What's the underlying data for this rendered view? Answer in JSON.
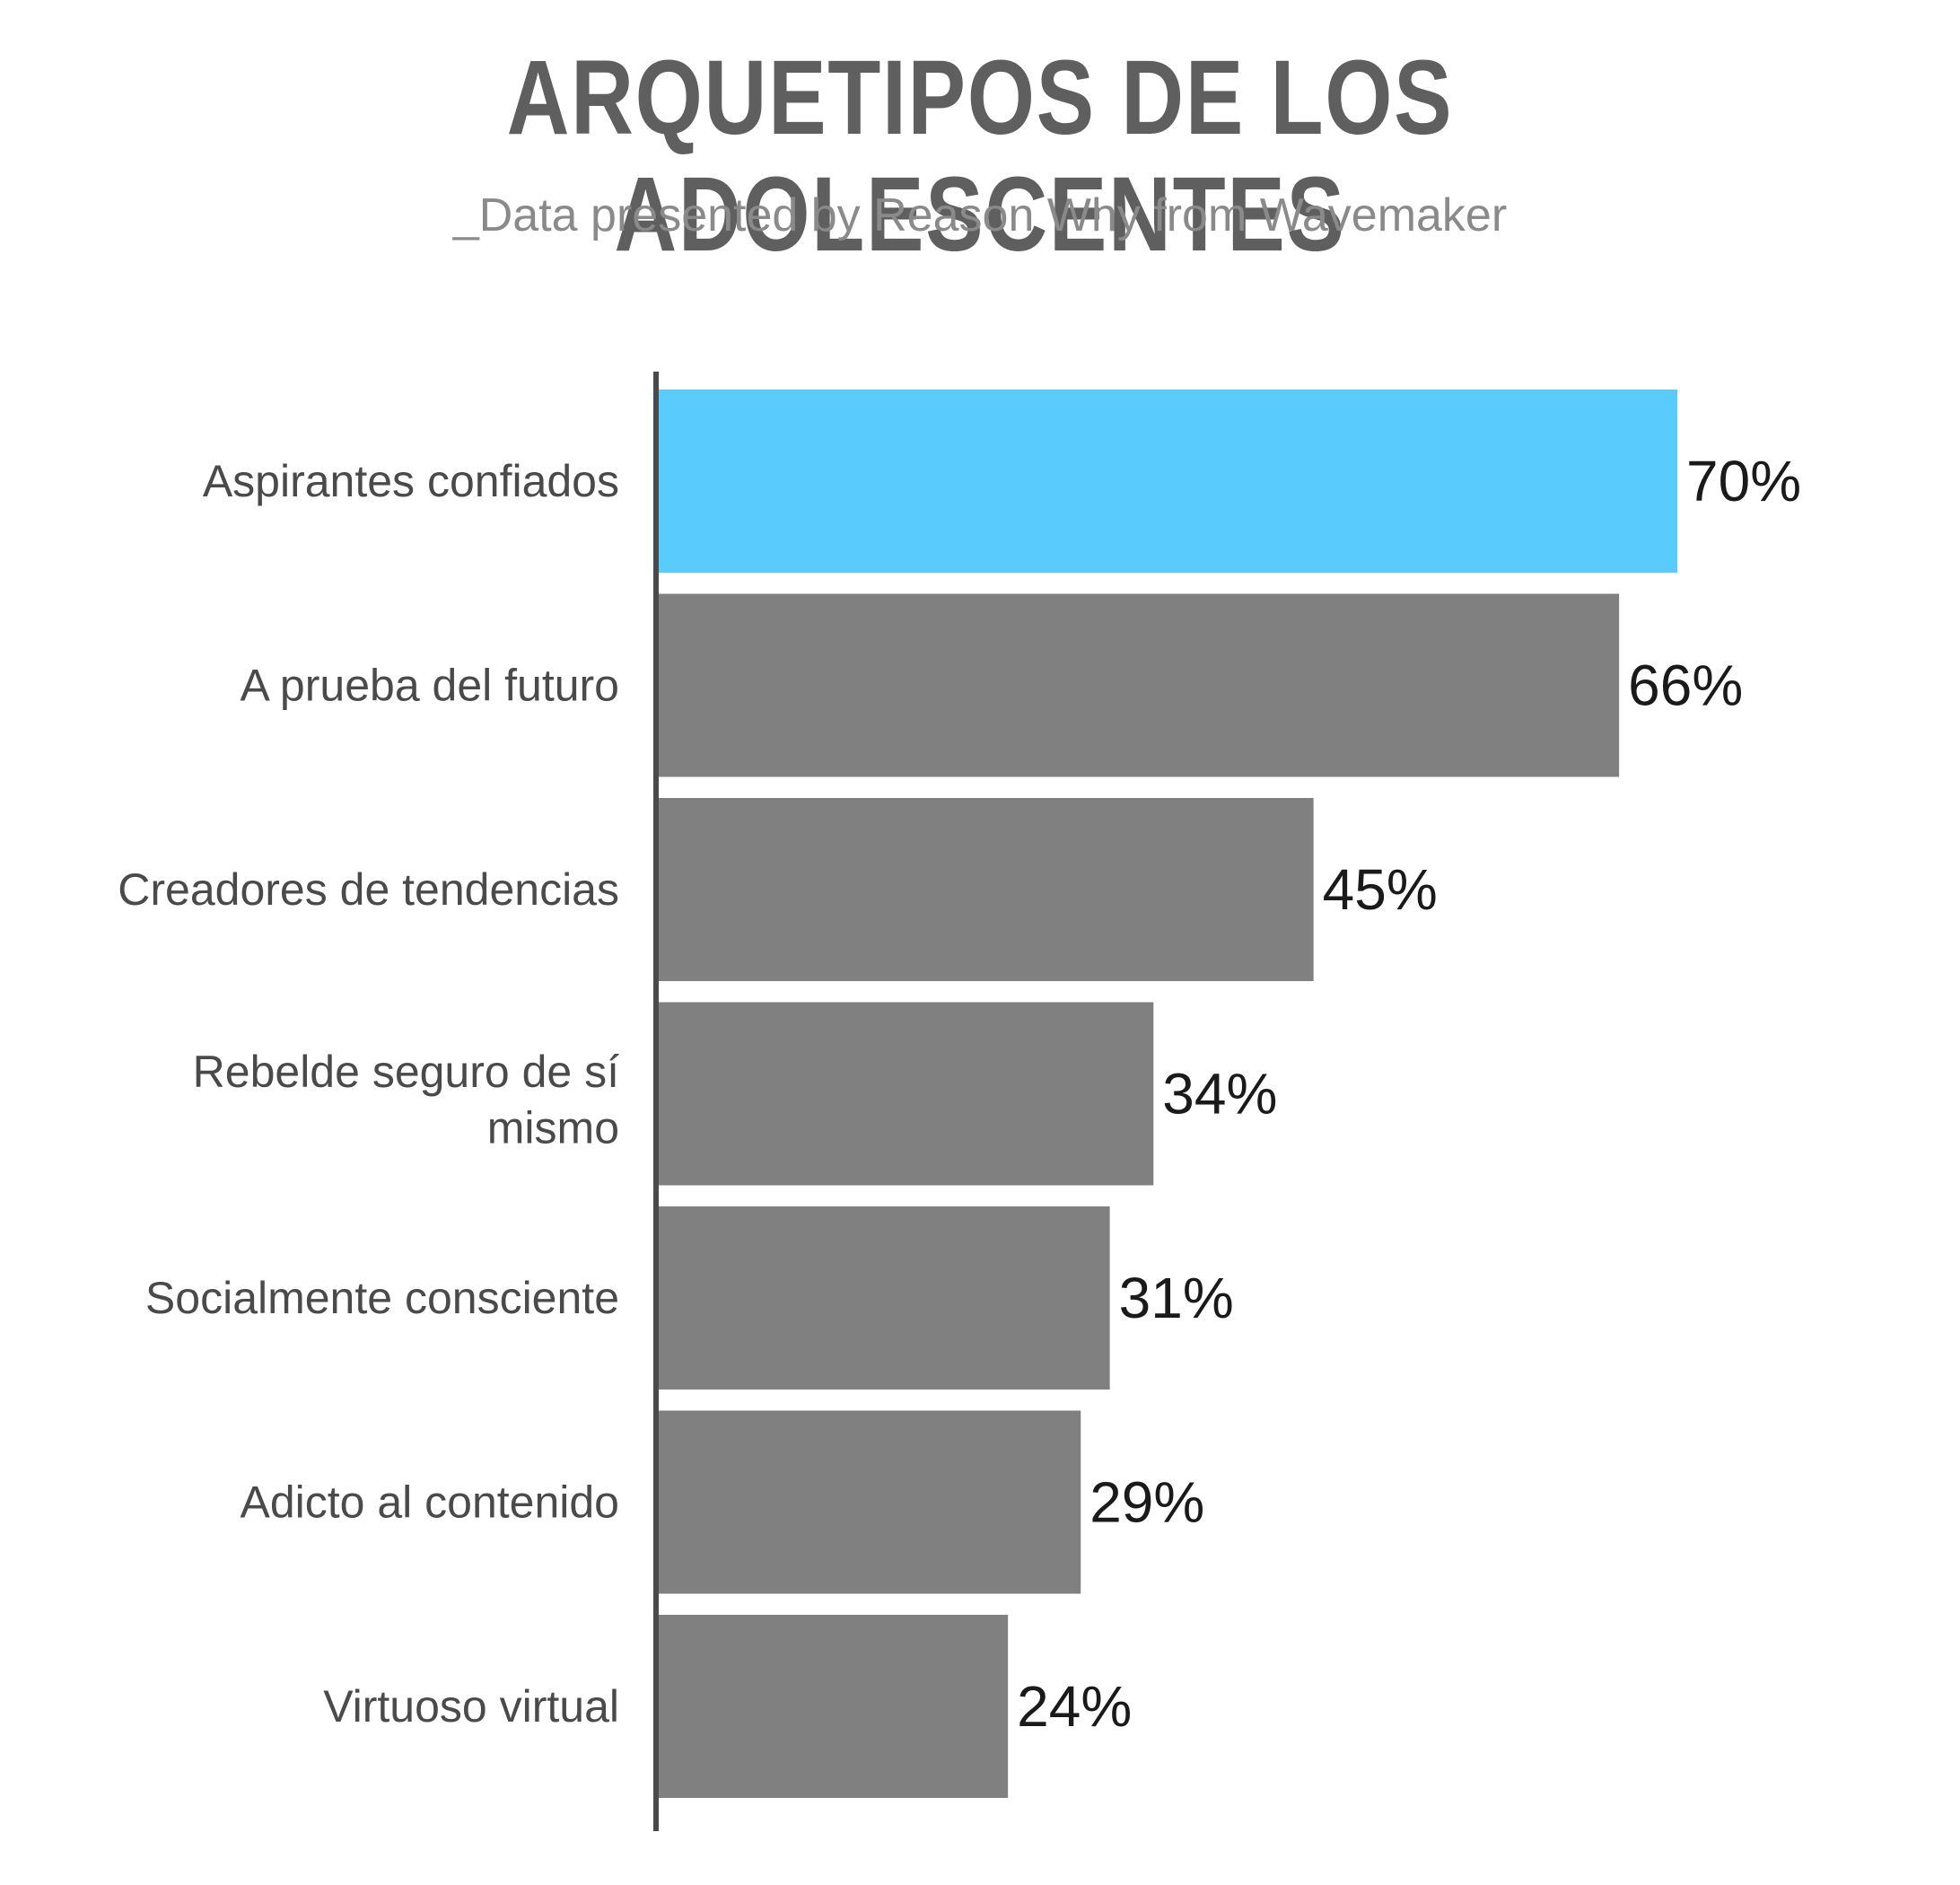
{
  "header": {
    "title": "ARQUETIPOS DE LOS ADOLESCENTES",
    "subtitle": "_Data presented by Reason Why from Wavemaker"
  },
  "colors": {
    "highlight": "#5acbfd",
    "bar": "#808080",
    "axis": "#4a4a4a",
    "title": "#5f5f5f",
    "subtitle": "#8a8a8a"
  },
  "chart_data": {
    "type": "bar",
    "orientation": "horizontal",
    "categories": [
      "Aspirantes confiados",
      "A prueba del futuro",
      "Creadores de tendencias",
      "Rebelde seguro de sí mismo",
      "Socialmente consciente",
      "Adicto al contenido",
      "Virtuoso virtual"
    ],
    "values": [
      70,
      66,
      45,
      34,
      31,
      29,
      24
    ],
    "value_labels": [
      "70%",
      "66%",
      "45%",
      "34%",
      "31%",
      "29%",
      "24%"
    ],
    "highlighted_index": 0,
    "xlim": [
      0,
      70
    ],
    "title": "ARQUETIPOS DE LOS ADOLESCENTES",
    "xlabel": "",
    "ylabel": "",
    "grid": false,
    "legend": "none"
  }
}
